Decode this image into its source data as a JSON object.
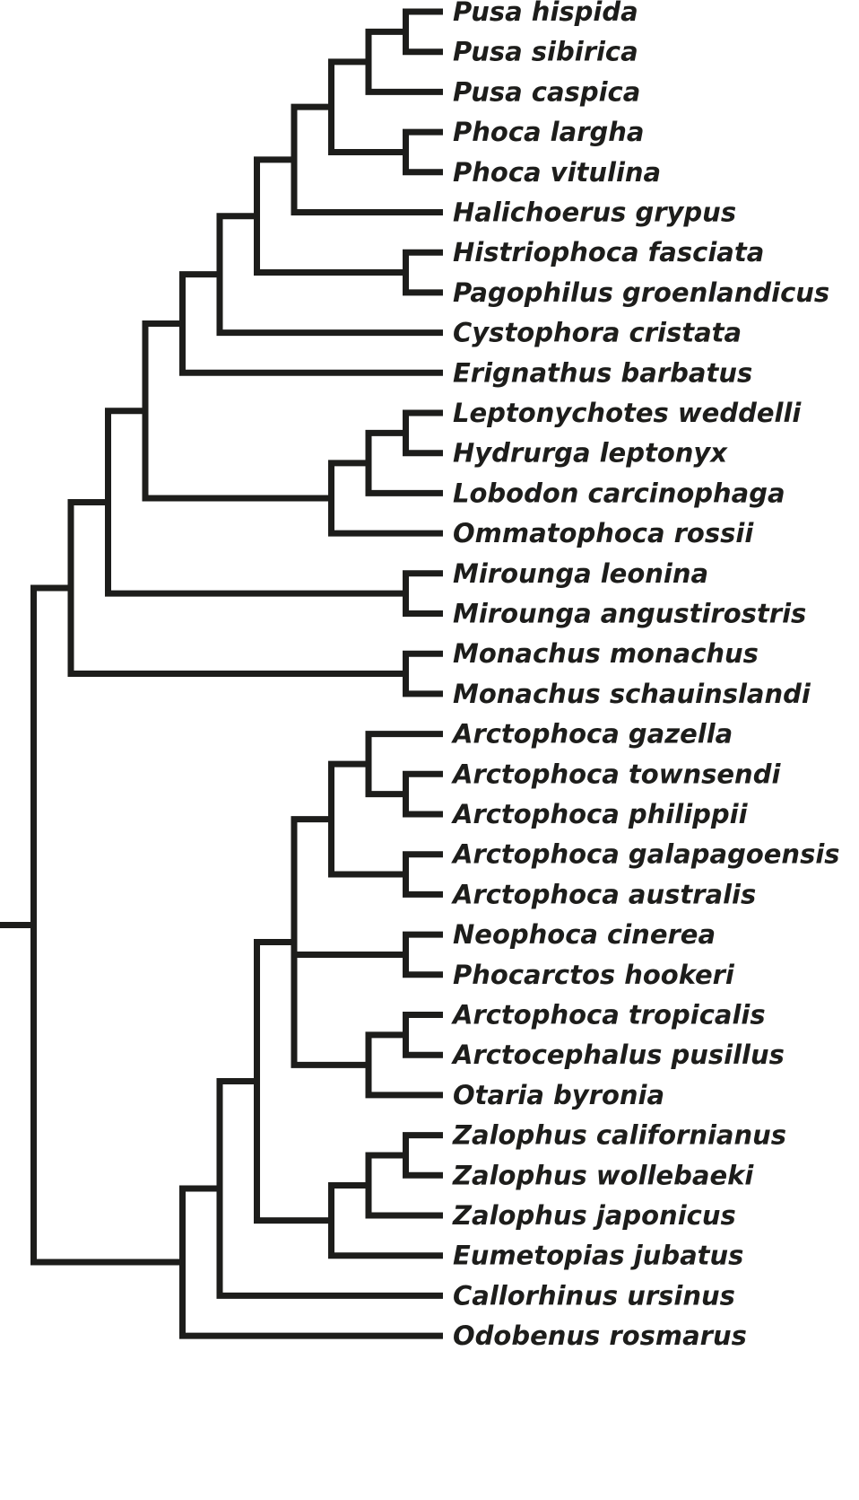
{
  "figure": {
    "type": "cladogram",
    "description": "Phylogenetic tree (cladogram) of pinnipeds: phocid seals (top clade), otariid fur seals and sea lions, and the walrus (bottom)",
    "line_color": "#1d1d1b",
    "text_color": "#1d1d1b"
  },
  "tree": {
    "taxa": [
      "Pusa hispida",
      "Pusa sibirica",
      "Pusa caspica",
      "Phoca largha",
      "Phoca vitulina",
      "Halichoerus grypus",
      "Histriophoca fasciata",
      "Pagophilus groenlandicus",
      "Cystophora cristata",
      "Erignathus barbatus",
      "Leptonychotes weddelli",
      "Hydrurga leptonyx",
      "Lobodon carcinophaga",
      "Ommatophoca rossii",
      "Mirounga leonina",
      "Mirounga angustirostris",
      "Monachus monachus",
      "Monachus schauinslandi",
      "Arctophoca gazella",
      "Arctophoca townsendi",
      "Arctophoca philippii",
      "Arctophoca galapagoensis",
      "Arctophoca australis",
      "Neophoca cinerea",
      "Phocarctos hookeri",
      "Arctophoca tropicalis",
      "Arctocephalus pusillus",
      "Otaria byronia",
      "Zalophus californianus",
      "Zalophus wollebaeki",
      "Zalophus japonicus",
      "Eumetopias jubatus",
      "Callorhinus ursinus",
      "Odobenus rosmarus"
    ],
    "topology": [
      [
        [
          [
            [
              [
                [
                  [
                    [
                      [
                        [
                          "Pusa hispida",
                          "Pusa sibirica"
                        ],
                        "Pusa caspica"
                      ],
                      [
                        "Phoca largha",
                        "Phoca vitulina"
                      ]
                    ],
                    "Halichoerus grypus"
                  ],
                  [
                    "Histriophoca fasciata",
                    "Pagophilus groenlandicus"
                  ]
                ],
                "Cystophora cristata"
              ],
              "Erignathus barbatus"
            ],
            [
              [
                [
                  "Leptonychotes weddelli",
                  "Hydrurga leptonyx"
                ],
                "Lobodon carcinophaga"
              ],
              "Ommatophoca rossii"
            ]
          ],
          [
            "Mirounga leonina",
            "Mirounga angustirostris"
          ]
        ],
        [
          "Monachus monachus",
          "Monachus schauinslandi"
        ]
      ],
      [
        [
          [
            [
              [
                [
                  "Arctophoca gazella",
                  [
                    "Arctophoca townsendi",
                    "Arctophoca philippii"
                  ]
                ],
                [
                  "Arctophoca galapagoensis",
                  "Arctophoca australis"
                ]
              ],
              [
                "Neophoca cinerea",
                "Phocarctos hookeri"
              ],
              [
                [
                  "Arctophoca tropicalis",
                  "Arctocephalus pusillus"
                ],
                "Otaria byronia"
              ]
            ],
            [
              [
                [
                  "Zalophus californianus",
                  "Zalophus wollebaeki"
                ],
                "Zalophus japonicus"
              ],
              "Eumetopias jubatus"
            ]
          ],
          "Callorhinus ursinus"
        ],
        "Odobenus rosmarus"
      ]
    ]
  }
}
